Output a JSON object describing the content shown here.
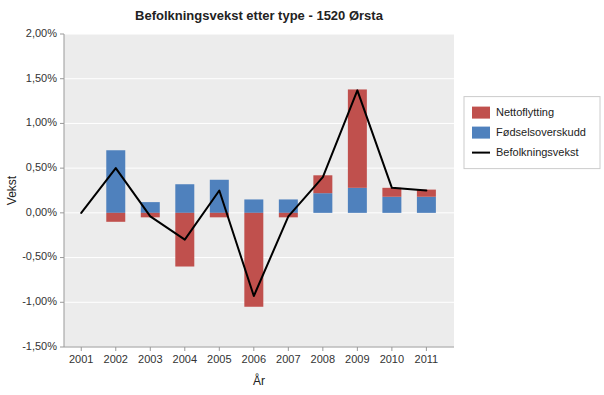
{
  "chart_data": {
    "type": "bar",
    "title": "Befolkningsvekst etter type - 1520 Ørsta",
    "xlabel": "År",
    "ylabel": "Vekst",
    "x": [
      2001,
      2002,
      2003,
      2004,
      2005,
      2006,
      2007,
      2008,
      2009,
      2010,
      2011
    ],
    "xlim": [
      2000.5,
      2011.8
    ],
    "xticks": [
      2001,
      2002,
      2003,
      2004,
      2005,
      2006,
      2007,
      2008,
      2009,
      2010,
      2011
    ],
    "ylim": [
      -0.015,
      0.02
    ],
    "yticks": [
      {
        "value": -0.015,
        "label": "-1,50%"
      },
      {
        "value": -0.01,
        "label": "-1,00%"
      },
      {
        "value": -0.005,
        "label": "-0,50%"
      },
      {
        "value": 0,
        "label": "0,00%"
      },
      {
        "value": 0.005,
        "label": "0,50%"
      },
      {
        "value": 0.01,
        "label": "1,00%"
      },
      {
        "value": 0.015,
        "label": "1,50%"
      },
      {
        "value": 0.02,
        "label": "2,00%"
      }
    ],
    "stacked": true,
    "grid": true,
    "legend": "right",
    "series": [
      {
        "name": "Nettoflytting",
        "type": "bar",
        "color": "#C0504D",
        "values": [
          0.0,
          -0.001,
          -0.0005,
          -0.006,
          -0.0005,
          -0.0105,
          -0.0005,
          0.002,
          0.011,
          0.001,
          0.0008
        ]
      },
      {
        "name": "Fødselsoverskudd",
        "type": "bar",
        "color": "#4F81BD",
        "values": [
          0.0,
          0.007,
          0.0012,
          0.0032,
          0.0037,
          0.0015,
          0.0015,
          0.0022,
          0.0028,
          0.0018,
          0.0018
        ]
      },
      {
        "name": "Befolkningsvekst",
        "type": "line",
        "color": "#000000",
        "values": [
          0.0,
          0.005,
          -0.0004,
          -0.003,
          0.0025,
          -0.0093,
          -0.0004,
          0.004,
          0.0137,
          0.0028,
          0.0025
        ]
      }
    ]
  }
}
